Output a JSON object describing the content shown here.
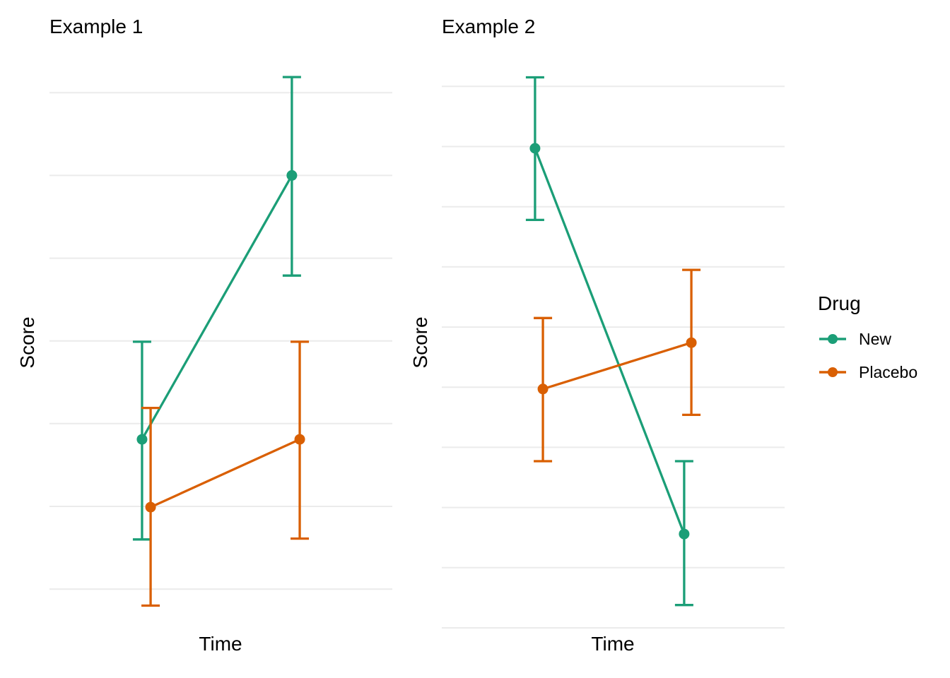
{
  "meta": {
    "background_color": "#ffffff",
    "gridline_color": "#ebebeb",
    "text_color": "#000000"
  },
  "legend": {
    "title": "Drug",
    "position": "right",
    "items": [
      {
        "label": "New",
        "color": "#1b9e77"
      },
      {
        "label": "Placebo",
        "color": "#d95f02"
      }
    ]
  },
  "chart_data": [
    {
      "type": "line",
      "title": "Example 1",
      "xlabel": "Time",
      "ylabel": "Score",
      "x_tick_labels": [],
      "y_tick_labels": [],
      "ylim": [
        -0.52,
        6.31
      ],
      "grid_values": [
        0,
        1,
        2,
        3,
        4,
        5,
        6
      ],
      "grid": "horizontal-only",
      "series": [
        {
          "name": "New",
          "color": "#1b9e77",
          "points": [
            {
              "x": 0.27,
              "y": 1.81,
              "lo": 0.6,
              "hi": 2.99
            },
            {
              "x": 0.707,
              "y": 5.0,
              "lo": 3.79,
              "hi": 6.19
            }
          ]
        },
        {
          "name": "Placebo",
          "color": "#d95f02",
          "points": [
            {
              "x": 0.295,
              "y": 0.99,
              "lo": -0.2,
              "hi": 2.19
            },
            {
              "x": 0.73,
              "y": 1.81,
              "lo": 0.61,
              "hi": 2.99
            }
          ]
        }
      ]
    },
    {
      "type": "line",
      "title": "Example 2",
      "xlabel": "Time",
      "ylabel": "Score",
      "x_tick_labels": [],
      "y_tick_labels": [],
      "ylim": [
        -0.07,
        9.32
      ],
      "grid_values": [
        0,
        1,
        2,
        3,
        4,
        5,
        6,
        7,
        8,
        9
      ],
      "grid": "horizontal-only",
      "series": [
        {
          "name": "New",
          "color": "#1b9e77",
          "points": [
            {
              "x": 0.272,
              "y": 7.97,
              "lo": 6.78,
              "hi": 9.15
            },
            {
              "x": 0.707,
              "y": 1.56,
              "lo": 0.38,
              "hi": 2.77
            }
          ]
        },
        {
          "name": "Placebo",
          "color": "#d95f02",
          "points": [
            {
              "x": 0.295,
              "y": 3.97,
              "lo": 2.77,
              "hi": 5.15
            },
            {
              "x": 0.728,
              "y": 4.74,
              "lo": 3.54,
              "hi": 5.95
            }
          ]
        }
      ]
    }
  ]
}
